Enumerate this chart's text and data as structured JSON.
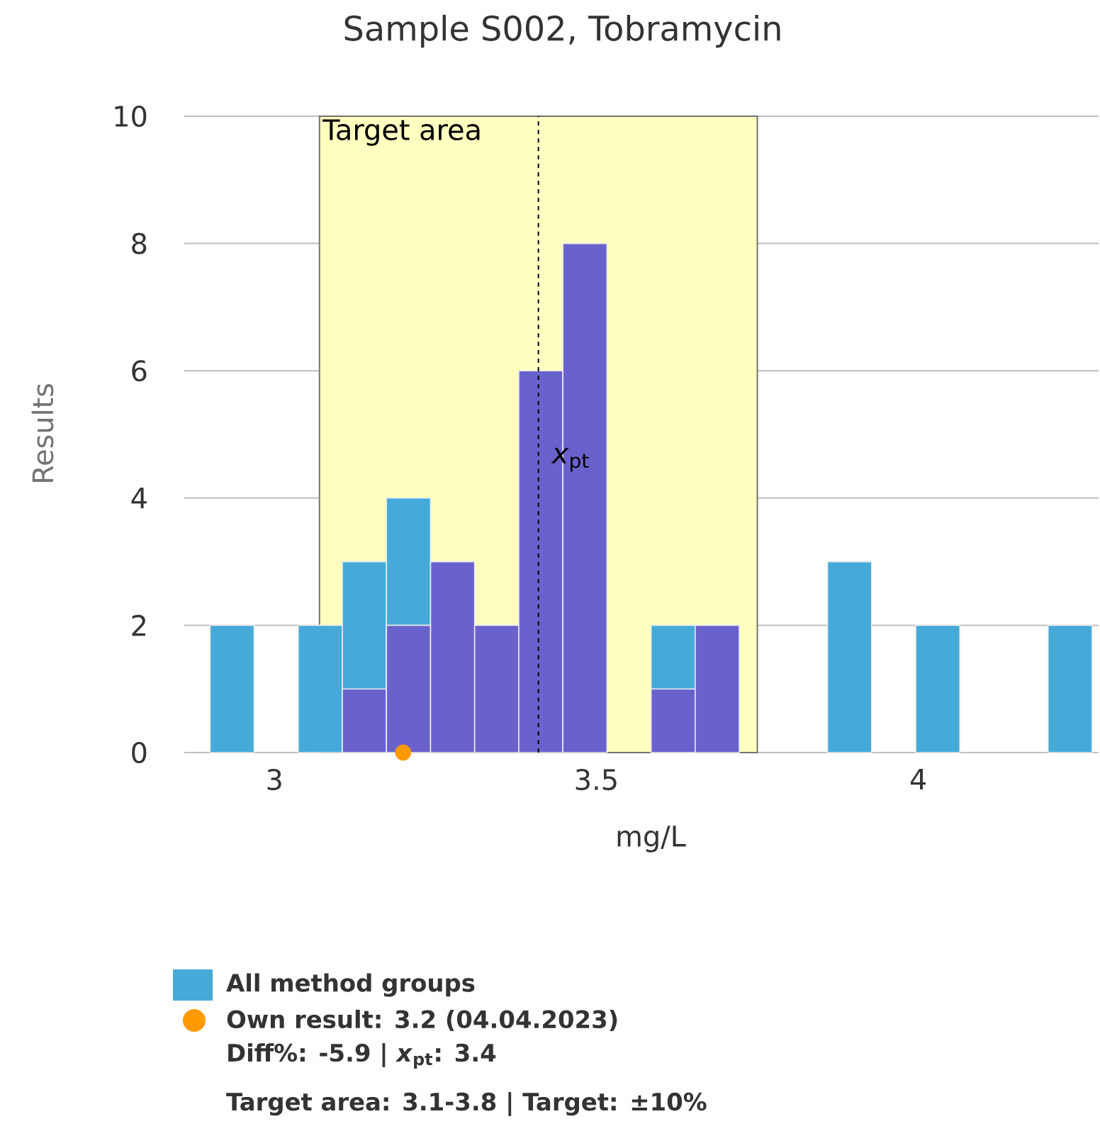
{
  "chart_data": {
    "type": "histogram",
    "title": "Sample S002, Tobramycin",
    "xlabel": "mg/L",
    "ylabel": "Results",
    "bins": [
      2.9,
      2.9685,
      3.037,
      3.1055,
      3.174,
      3.2425,
      3.311,
      3.3795,
      3.448,
      3.5165,
      3.585,
      3.6535,
      3.722,
      3.7905,
      3.859,
      3.9275,
      3.996,
      4.0645,
      4.133,
      4.2015,
      4.27
    ],
    "series": [
      {
        "name": "All method groups",
        "color": "#45aad8",
        "values": [
          2,
          0,
          2,
          3,
          4,
          null,
          null,
          null,
          null,
          0,
          2,
          null,
          0,
          0,
          3,
          0,
          2,
          0,
          0,
          2
        ]
      },
      {
        "color": "#6a62cc",
        "values": [
          0,
          0,
          0,
          1,
          2,
          3,
          2,
          6,
          8,
          0,
          1,
          2,
          0,
          0,
          0,
          0,
          0,
          0,
          0,
          0
        ]
      },
      {
        "type": "scatter",
        "name": "Own result: 3.2 (04.04.2023)",
        "color": "#ff9900",
        "marker": "circle",
        "x": [
          3.2
        ],
        "values": [
          0
        ]
      }
    ],
    "xlim": [
      2.86,
      4.28
    ],
    "xticks": [
      3,
      3.5,
      4
    ],
    "ylim": [
      0,
      10
    ],
    "yticks": [
      0,
      2,
      4,
      6,
      8,
      10
    ],
    "grid": "y",
    "legend": "bottom",
    "bands": [
      {
        "axis": "x",
        "from": 3.07,
        "to": 3.75,
        "label": "Target area",
        "color": "#ffffc0"
      }
    ],
    "ref_lines": [
      {
        "axis": "x",
        "value": 3.41,
        "label": "*x*$_{pt}$",
        "line_style": "dashed"
      }
    ],
    "annotations": [
      "Diff%: -5.9 | *x*$_{pt}$: 3.4",
      "Target area: 3.1-3.8 | Target: ±10%"
    ]
  }
}
